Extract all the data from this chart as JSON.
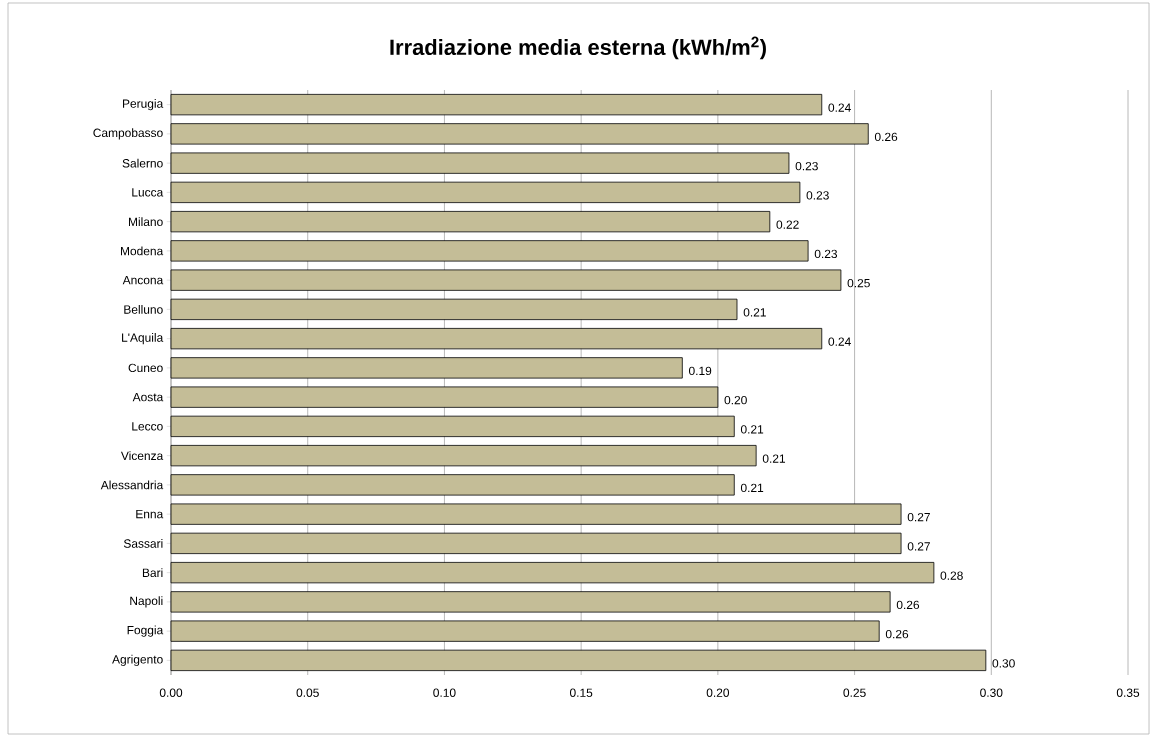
{
  "chart_data": {
    "type": "bar",
    "orientation": "horizontal",
    "title": "Irradiazione media esterna (kWh/m$^{2}$)",
    "categories": [
      "Perugia",
      "Campobasso",
      "Salerno",
      "Lucca",
      "Milano",
      "Modena",
      "Ancona",
      "Belluno",
      "L'Aquila",
      "Cuneo",
      "Aosta",
      "Lecco",
      "Vicenza",
      "Alessandria",
      "Enna",
      "Sassari",
      "Bari",
      "Napoli",
      "Foggia",
      "Agrigento"
    ],
    "values": [
      0.238,
      0.255,
      0.226,
      0.23,
      0.219,
      0.233,
      0.245,
      0.207,
      0.238,
      0.187,
      0.2,
      0.206,
      0.214,
      0.206,
      0.267,
      0.267,
      0.279,
      0.263,
      0.259,
      0.298
    ],
    "value_labels": [
      "0.24",
      "0.26",
      "0.23",
      "0.23",
      "0.22",
      "0.23",
      "0.25",
      "0.21",
      "0.24",
      "0.19",
      "0.20",
      "0.21",
      "0.21",
      "0.21",
      "0.27",
      "0.27",
      "0.28",
      "0.26",
      "0.26",
      "0.30"
    ],
    "color": "#c4bd97",
    "xlim": [
      0,
      0.35
    ],
    "xticks": [
      "0.00",
      "0.05",
      "0.10",
      "0.15",
      "0.20",
      "0.25",
      "0.30",
      "0.35"
    ],
    "grid": "x"
  }
}
